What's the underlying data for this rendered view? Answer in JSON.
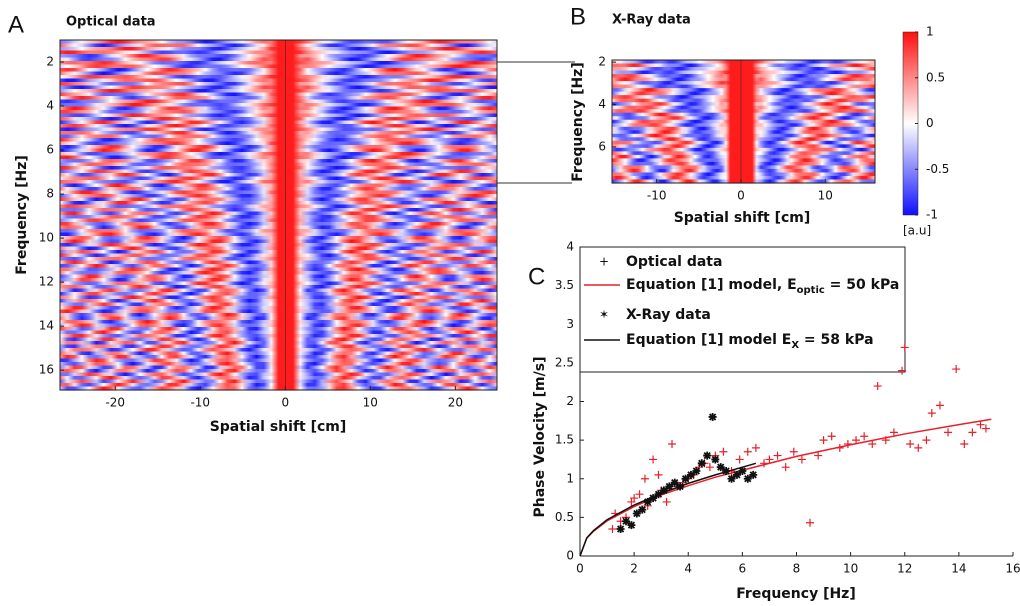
{
  "chart_data": [
    {
      "type": "heatmap",
      "panel": "A",
      "title": "Optical data",
      "xlabel": "Spatial shift [cm]",
      "ylabel": "Frequency [Hz]",
      "xlim": [
        -26.5,
        24.9
      ],
      "xticks": [
        -20,
        -10,
        0,
        10,
        20
      ],
      "ylim": [
        1,
        16.9
      ],
      "yticks": [
        2,
        4,
        6,
        8,
        10,
        12,
        14,
        16
      ],
      "y_reversed": true,
      "colormap": [
        "#1010ff",
        "#ffffff",
        "#ff1010"
      ]
    },
    {
      "type": "heatmap",
      "panel": "B",
      "title": "X-Ray data",
      "xlabel": "Spatial shift [cm]",
      "ylabel": "Frequency [Hz]",
      "xlim": [
        -15.3,
        15.9
      ],
      "xticks": [
        -10,
        0,
        10
      ],
      "ylim": [
        1.9,
        7.7
      ],
      "yticks": [
        2,
        4,
        6
      ],
      "y_reversed": true,
      "colormap": [
        "#1010ff",
        "#ffffff",
        "#ff1010"
      ],
      "clim": [
        -1,
        1
      ],
      "cticks": [
        1,
        0.5,
        0,
        -0.5,
        -1
      ],
      "colorbar_label": "[a.u]"
    },
    {
      "type": "scatter",
      "panel": "C",
      "xlabel": "Frequency [Hz]",
      "ylabel": "Phase Velocity [m/s]",
      "xlim": [
        0,
        16
      ],
      "xticks": [
        0,
        2,
        4,
        6,
        8,
        10,
        12,
        14,
        16
      ],
      "ylim": [
        0,
        4
      ],
      "yticks": [
        0,
        0.5,
        1,
        1.5,
        2,
        2.5,
        3,
        3.5,
        4
      ],
      "series": [
        {
          "name": "Optical data",
          "kind": "plus",
          "color": "#e8202a",
          "x": [
            1.2,
            1.3,
            1.5,
            1.7,
            1.9,
            2.0,
            2.2,
            2.4,
            2.5,
            2.7,
            2.9,
            3.0,
            3.2,
            3.4,
            3.6,
            3.8,
            4.0,
            4.2,
            4.4,
            4.6,
            4.8,
            5.0,
            5.3,
            5.6,
            5.9,
            6.2,
            6.5,
            6.8,
            7.0,
            7.3,
            7.6,
            7.9,
            8.2,
            8.5,
            8.8,
            9.0,
            9.3,
            9.6,
            9.9,
            10.2,
            10.5,
            10.8,
            11.0,
            11.3,
            11.6,
            11.9,
            12.0,
            12.2,
            12.5,
            12.8,
            13.0,
            13.3,
            13.6,
            13.9,
            14.2,
            14.5,
            14.8,
            15.0
          ],
          "values": [
            0.35,
            0.55,
            0.45,
            0.5,
            0.7,
            0.75,
            0.8,
            1.0,
            0.65,
            1.25,
            1.05,
            0.85,
            0.7,
            1.45,
            0.9,
            0.95,
            1.0,
            1.05,
            1.15,
            1.2,
            1.15,
            1.3,
            1.35,
            1.1,
            1.25,
            1.35,
            1.4,
            1.2,
            1.25,
            1.3,
            1.15,
            1.35,
            1.25,
            0.43,
            1.3,
            1.5,
            1.55,
            1.4,
            1.45,
            1.5,
            1.55,
            1.45,
            2.2,
            1.5,
            1.6,
            2.4,
            2.7,
            1.45,
            1.4,
            1.5,
            1.85,
            1.95,
            1.6,
            2.42,
            1.45,
            1.6,
            1.7,
            1.65
          ]
        },
        {
          "name": "Equation [1] model, E",
          "name_sub": "optic",
          "name_suffix": " = 50 kPa",
          "kind": "line",
          "color": "#e8202a",
          "x": [
            0,
            0.25,
            0.5,
            1,
            2,
            3,
            4,
            5,
            6,
            8,
            10,
            12,
            14,
            15.2
          ],
          "values": [
            0,
            0.23,
            0.32,
            0.455,
            0.64,
            0.79,
            0.91,
            1.02,
            1.11,
            1.29,
            1.44,
            1.58,
            1.7,
            1.77
          ]
        },
        {
          "name": "X-Ray data",
          "kind": "star",
          "color": "#111111",
          "x": [
            1.5,
            1.7,
            1.9,
            2.1,
            2.3,
            2.5,
            2.7,
            2.9,
            3.1,
            3.3,
            3.5,
            3.7,
            3.9,
            4.1,
            4.3,
            4.5,
            4.7,
            4.9,
            5.0,
            5.2,
            5.4,
            5.6,
            5.8,
            6.0,
            6.2,
            6.4
          ],
          "values": [
            0.35,
            0.45,
            0.4,
            0.55,
            0.6,
            0.7,
            0.75,
            0.8,
            0.85,
            0.9,
            0.95,
            0.9,
            1.0,
            1.05,
            1.1,
            1.2,
            1.3,
            1.8,
            1.25,
            1.15,
            1.1,
            1.0,
            1.05,
            1.1,
            1.0,
            1.05
          ]
        },
        {
          "name": "Equation [1] model E",
          "name_sub": "X",
          "name_suffix": " = 58 kPa",
          "kind": "line",
          "color": "#111111",
          "x": [
            0,
            0.25,
            0.5,
            1,
            2,
            3,
            4,
            5,
            6,
            6.5
          ],
          "values": [
            0,
            0.235,
            0.33,
            0.47,
            0.66,
            0.81,
            0.94,
            1.05,
            1.15,
            1.2
          ]
        }
      ]
    }
  ]
}
